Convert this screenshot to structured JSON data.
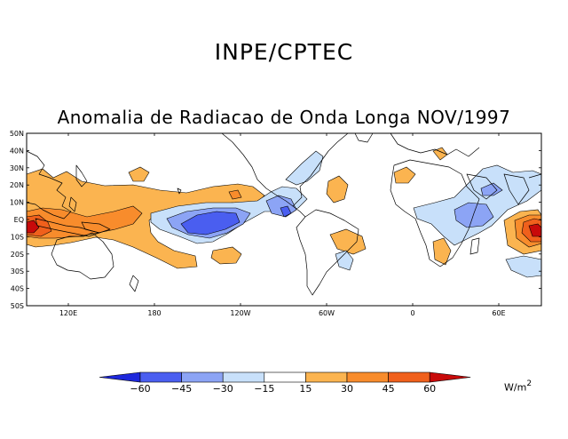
{
  "header": {
    "org_title": "INPE/CPTEC"
  },
  "map": {
    "title": "Anomalia de Radiacao de Onda Longa NOV/1997",
    "lat_labels": [
      "50N",
      "40N",
      "30N",
      "20N",
      "10N",
      "EQ",
      "10S",
      "20S",
      "30S",
      "40S",
      "50S"
    ],
    "lon_labels": [
      "120E",
      "180",
      "120W",
      "60W",
      "0",
      "60E"
    ]
  },
  "legend": {
    "tick_labels": [
      "-60",
      "-45",
      "-30",
      "-15",
      "15",
      "30",
      "45",
      "60"
    ],
    "colors": [
      "#1e28dc",
      "#4a5ef0",
      "#8ca4f5",
      "#c8e0fa",
      "#ffffff",
      "#fbb450",
      "#f88c2c",
      "#f0601c",
      "#c80a0a"
    ],
    "units": "W/m",
    "units_exp": "2"
  },
  "colors": {
    "pos_light": "#fbb450",
    "pos_mid": "#f88c2c",
    "pos_strong": "#f0601c",
    "pos_extreme": "#c80a0a",
    "neg_light": "#c8e0fa",
    "neg_mid": "#8ca4f5",
    "neg_strong": "#4a5ef0"
  }
}
